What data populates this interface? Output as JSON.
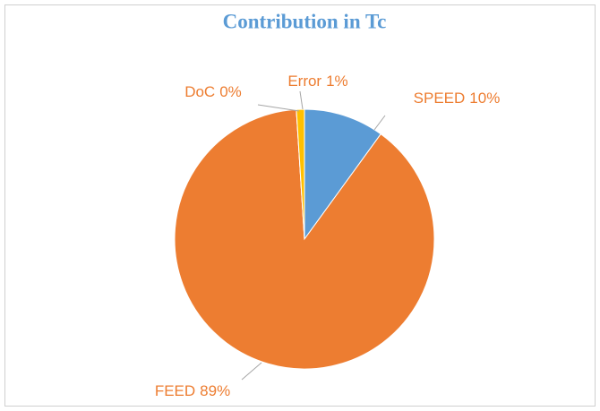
{
  "chart_data": {
    "type": "pie",
    "title": "Contribution in Tc",
    "categories": [
      "SPEED",
      "FEED",
      "DoC",
      "Error"
    ],
    "values": [
      10,
      89,
      0,
      1
    ],
    "value_labels": [
      "10%",
      "89%",
      "0%",
      "1%"
    ],
    "colors": [
      "#5b9bd5",
      "#ed7d31",
      "#a5a5a5",
      "#ffc000"
    ]
  }
}
